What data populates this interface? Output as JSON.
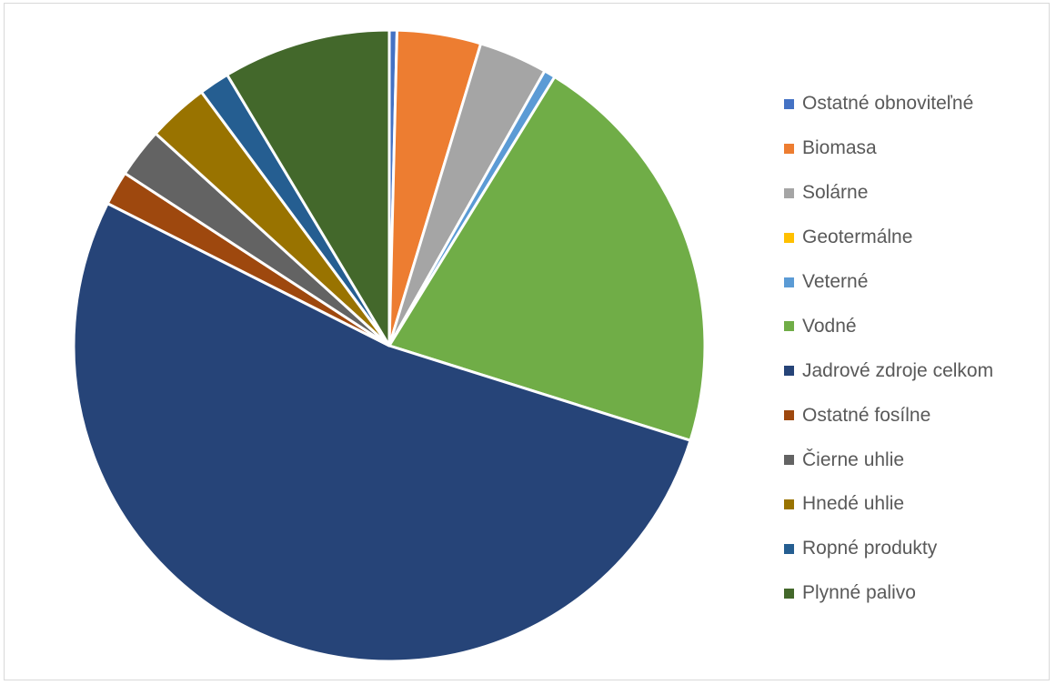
{
  "chart_data": {
    "type": "pie",
    "legend_position": "right",
    "series": [
      {
        "name": "Ostatné obnoviteľné",
        "value": 0.4,
        "color": "#4472C4"
      },
      {
        "name": "Biomasa",
        "value": 4.4,
        "color": "#ED7D31"
      },
      {
        "name": "Solárne",
        "value": 3.6,
        "color": "#A5A5A5"
      },
      {
        "name": "Geotermálne",
        "value": 0.0,
        "color": "#FFC000"
      },
      {
        "name": "Veterné",
        "value": 0.6,
        "color": "#5B9BD5"
      },
      {
        "name": "Vodné",
        "value": 21.6,
        "color": "#70AD47"
      },
      {
        "name": "Jadrové zdroje celkom",
        "value": 53.9,
        "color": "#264478"
      },
      {
        "name": "Ostatné fosílne",
        "value": 1.8,
        "color": "#9E480E"
      },
      {
        "name": "Čierne uhlie",
        "value": 2.6,
        "color": "#636363"
      },
      {
        "name": "Hnedé uhlie",
        "value": 3.2,
        "color": "#997300"
      },
      {
        "name": "Ropné produkty",
        "value": 1.6,
        "color": "#255E91"
      },
      {
        "name": "Plynné palivo",
        "value": 8.8,
        "color": "#43682B"
      }
    ]
  }
}
